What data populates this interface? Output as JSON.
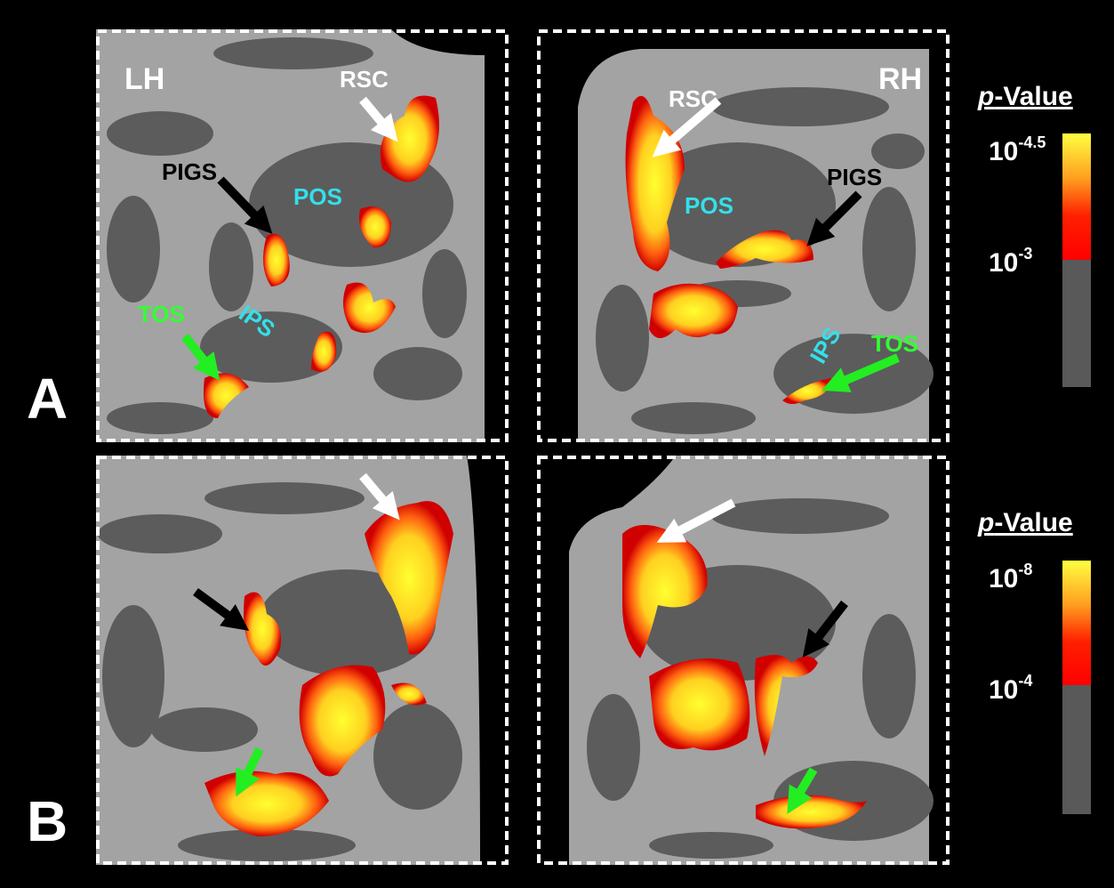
{
  "row_labels": [
    "A",
    "B"
  ],
  "hemispheres": [
    "LH",
    "RH"
  ],
  "region_labels": {
    "left": [
      "RSC",
      "PIGS",
      "POS",
      "IPS",
      "TOS"
    ],
    "right": [
      "RSC",
      "POS",
      "PIGS",
      "IPS",
      "TOS"
    ]
  },
  "colorbars": [
    {
      "title": {
        "italic": "p",
        "rest": "-Value"
      },
      "max": {
        "base": "10",
        "exponent": "-4.5"
      },
      "threshold": {
        "base": "10",
        "exponent": "-3"
      }
    },
    {
      "title": {
        "italic": "p",
        "rest": "-Value"
      },
      "max": {
        "base": "10",
        "exponent": "-8"
      },
      "threshold": {
        "base": "10",
        "exponent": "-4"
      }
    }
  ]
}
